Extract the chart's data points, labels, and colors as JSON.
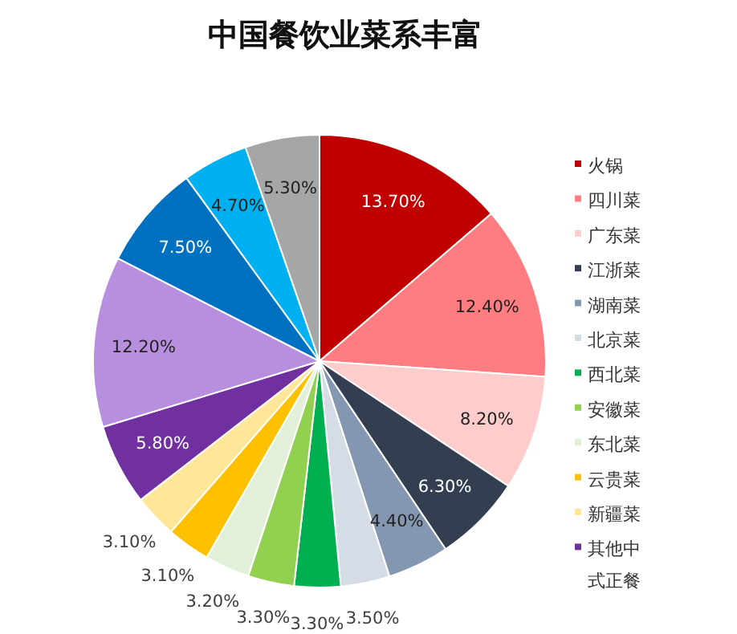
{
  "chart_data": {
    "type": "pie",
    "title": "中国餐饮业菜系丰富",
    "legend": "right",
    "categories": [
      "火锅",
      "四川菜",
      "广东菜",
      "江浙菜",
      "湖南菜",
      "北京菜",
      "西北菜",
      "安徽菜",
      "东北菜",
      "云贵菜",
      "新疆菜",
      "其他中式正餐",
      null,
      null,
      null,
      null
    ],
    "values": [
      13.7,
      12.4,
      8.2,
      6.3,
      4.4,
      3.5,
      3.3,
      3.3,
      3.2,
      3.1,
      3.1,
      5.8,
      12.2,
      7.5,
      4.7,
      5.3
    ],
    "value_labels": [
      "13.70%",
      "12.40%",
      "8.20%",
      "6.30%",
      "4.40%",
      "3.50%",
      "3.30%",
      "3.30%",
      "3.20%",
      "3.10%",
      "3.10%",
      "5.80%",
      "12.20%",
      "7.50%",
      "4.70%",
      "5.30%"
    ],
    "colors": [
      "#c00000",
      "#ff7c80",
      "#ffcccc",
      "#333f50",
      "#8497b0",
      "#d6dce5",
      "#00b050",
      "#92d050",
      "#e2f0d9",
      "#ffc000",
      "#ffe699",
      "#7030a0",
      "#b88fdf",
      "#0070c0",
      "#00b0f0",
      "#a6a6a6"
    ]
  }
}
